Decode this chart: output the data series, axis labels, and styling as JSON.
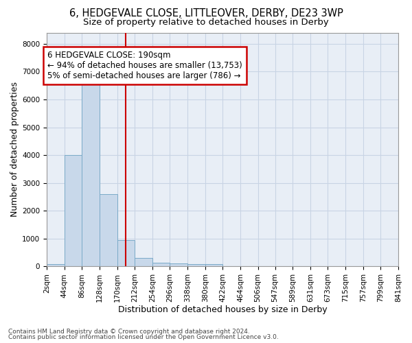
{
  "title": "6, HEDGEVALE CLOSE, LITTLEOVER, DERBY, DE23 3WP",
  "subtitle": "Size of property relative to detached houses in Derby",
  "xlabel": "Distribution of detached houses by size in Derby",
  "ylabel": "Number of detached properties",
  "footer1": "Contains HM Land Registry data © Crown copyright and database right 2024.",
  "footer2": "Contains public sector information licensed under the Open Government Licence v3.0.",
  "bin_edges": [
    2,
    44,
    86,
    128,
    170,
    212,
    254,
    296,
    338,
    380,
    422,
    464,
    506,
    547,
    589,
    631,
    673,
    715,
    757,
    799,
    841
  ],
  "bar_heights": [
    75,
    4000,
    6600,
    2600,
    950,
    300,
    125,
    100,
    75,
    75,
    0,
    0,
    0,
    0,
    0,
    0,
    0,
    0,
    0,
    0
  ],
  "bar_color": "#c8d8ea",
  "bar_edge_color": "#7aaac8",
  "bar_edge_width": 0.7,
  "property_size": 190,
  "red_line_color": "#cc0000",
  "annotation_line1": "6 HEDGEVALE CLOSE: 190sqm",
  "annotation_line2": "← 94% of detached houses are smaller (13,753)",
  "annotation_line3": "5% of semi-detached houses are larger (786) →",
  "annotation_box_color": "#cc0000",
  "ylim": [
    0,
    8400
  ],
  "yticks": [
    0,
    1000,
    2000,
    3000,
    4000,
    5000,
    6000,
    7000,
    8000
  ],
  "grid_color": "#c8d4e4",
  "bg_color": "#e8eef6",
  "title_fontsize": 10.5,
  "subtitle_fontsize": 9.5,
  "axis_label_fontsize": 9,
  "tick_fontsize": 7.5,
  "annotation_fontsize": 8.5,
  "footer_fontsize": 6.5
}
